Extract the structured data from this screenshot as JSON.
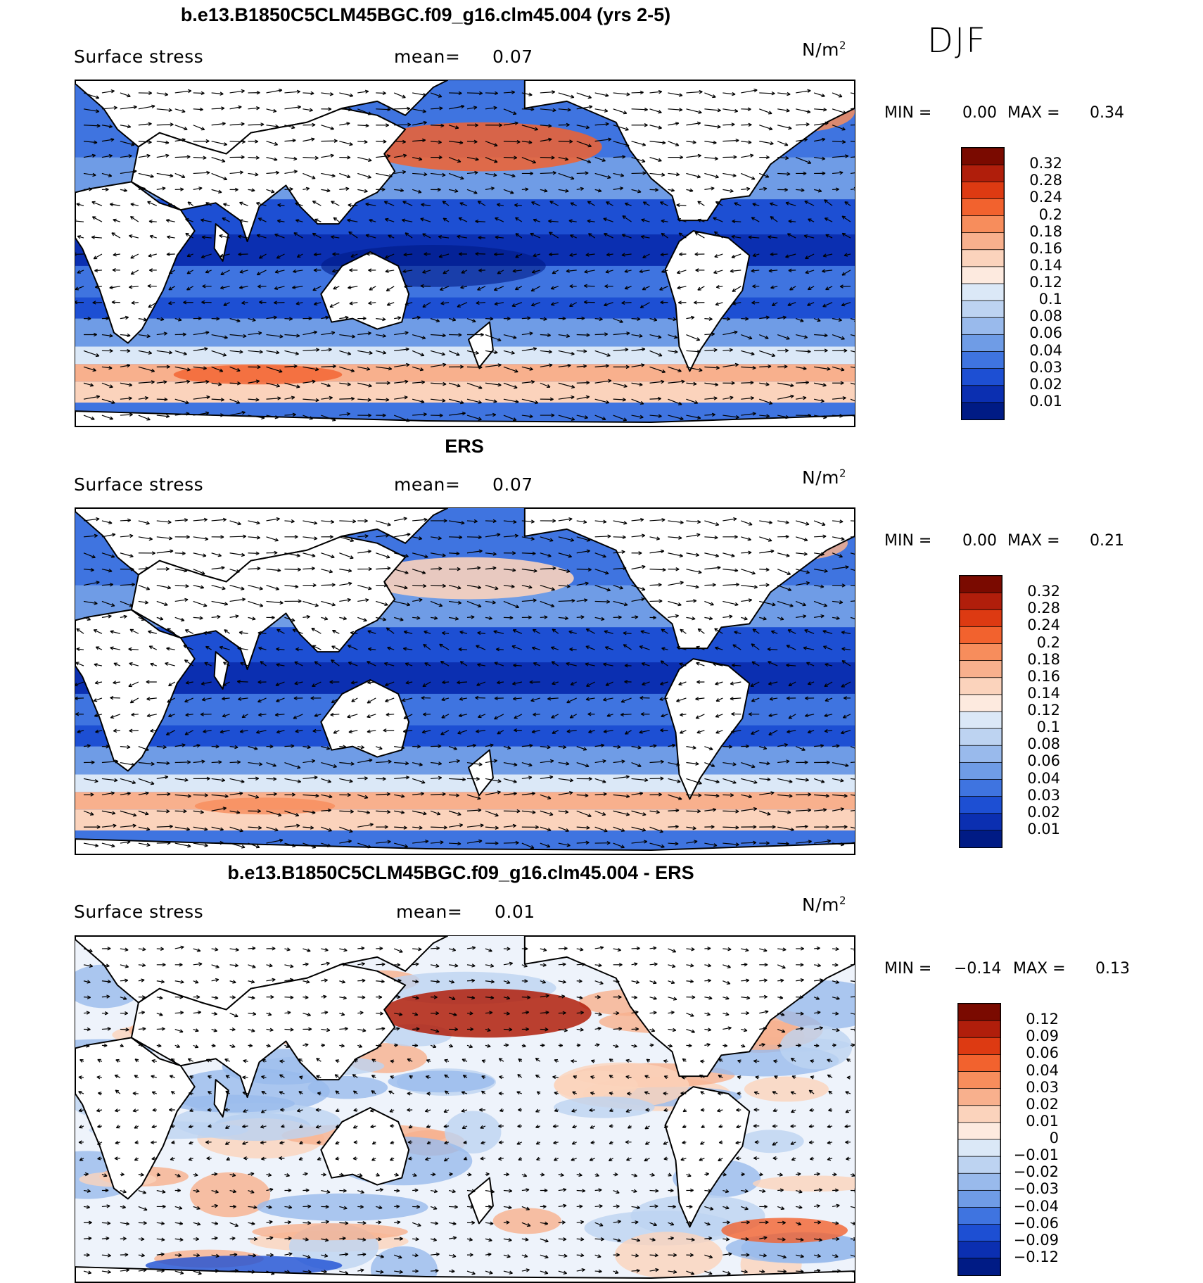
{
  "season": "DJF",
  "panels": [
    {
      "title": "b.e13.B1850C5CLM45BGC.f09_g16.clm45.004 (yrs 2-5)",
      "variable": "Surface stress",
      "mean_label": "mean=",
      "mean_value": "0.07",
      "units": "N/m",
      "units_exp": "2",
      "min_label": "MIN =",
      "min_value": "0.00",
      "max_label": "MAX =",
      "max_value": "0.34",
      "colorbar": [
        "0.32",
        "0.28",
        "0.24",
        "0.2",
        "0.18",
        "0.16",
        "0.14",
        "0.12",
        "0.1",
        "0.08",
        "0.06",
        "0.04",
        "0.03",
        "0.02",
        "0.01"
      ],
      "palette": [
        "#7a0a00",
        "#b01e0b",
        "#dd3a12",
        "#f2622e",
        "#f78d5c",
        "#f8b08d",
        "#fbd3bc",
        "#fdeadf",
        "#dbe8f7",
        "#bdd3f1",
        "#99baec",
        "#6f9ce6",
        "#3f74e0",
        "#1d4fd3",
        "#0b2fb1",
        "#001b85"
      ]
    },
    {
      "title": "ERS",
      "variable": "Surface stress",
      "mean_label": "mean=",
      "mean_value": "0.07",
      "units": "N/m",
      "units_exp": "2",
      "min_label": "MIN =",
      "min_value": "0.00",
      "max_label": "MAX =",
      "max_value": "0.21",
      "colorbar": [
        "0.32",
        "0.28",
        "0.24",
        "0.2",
        "0.18",
        "0.16",
        "0.14",
        "0.12",
        "0.1",
        "0.08",
        "0.06",
        "0.04",
        "0.03",
        "0.02",
        "0.01"
      ],
      "palette": [
        "#7a0a00",
        "#b01e0b",
        "#dd3a12",
        "#f2622e",
        "#f78d5c",
        "#f8b08d",
        "#fbd3bc",
        "#fdeadf",
        "#dbe8f7",
        "#bdd3f1",
        "#99baec",
        "#6f9ce6",
        "#3f74e0",
        "#1d4fd3",
        "#0b2fb1",
        "#001b85"
      ]
    },
    {
      "title": "b.e13.B1850C5CLM45BGC.f09_g16.clm45.004 - ERS",
      "variable": "Surface stress",
      "mean_label": "mean=",
      "mean_value": "0.01",
      "units": "N/m",
      "units_exp": "2",
      "min_label": "MIN =",
      "min_value": "−0.14",
      "max_label": "MAX =",
      "max_value": "0.13",
      "colorbar": [
        "0.12",
        "0.09",
        "0.06",
        "0.04",
        "0.03",
        "0.02",
        "0.01",
        "0",
        "−0.01",
        "−0.02",
        "−0.03",
        "−0.04",
        "−0.06",
        "−0.09",
        "−0.12"
      ],
      "palette": [
        "#7a0a00",
        "#b01e0b",
        "#dd3a12",
        "#f2622e",
        "#f78d5c",
        "#f8b08d",
        "#fbd3bc",
        "#fdeadf",
        "#dbe8f7",
        "#bdd3f1",
        "#99baec",
        "#6f9ce6",
        "#3f74e0",
        "#1d4fd3",
        "#0b2fb1",
        "#001b85"
      ]
    }
  ]
}
